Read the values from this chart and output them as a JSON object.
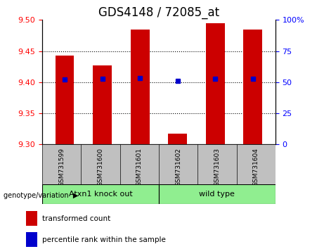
{
  "title": "GDS4148 / 72085_at",
  "samples": [
    "GSM731599",
    "GSM731600",
    "GSM731601",
    "GSM731602",
    "GSM731603",
    "GSM731604"
  ],
  "red_values": [
    9.443,
    9.427,
    9.484,
    9.317,
    9.495,
    9.484
  ],
  "blue_values": [
    9.404,
    9.405,
    9.407,
    9.402,
    9.406,
    9.405
  ],
  "ylim_left": [
    9.3,
    9.5
  ],
  "ylim_right": [
    0,
    100
  ],
  "yticks_left": [
    9.3,
    9.35,
    9.4,
    9.45,
    9.5
  ],
  "yticks_right": [
    0,
    25,
    50,
    75,
    100
  ],
  "ytick_labels_right": [
    "0",
    "25",
    "50",
    "75",
    "100%"
  ],
  "bar_bottom": 9.3,
  "group1_label": "Atxn1 knock out",
  "group2_label": "wild type",
  "group1_color": "#90EE90",
  "group2_color": "#90EE90",
  "tick_bg_color": "#C0C0C0",
  "red_color": "#CC0000",
  "blue_color": "#0000CC",
  "legend_red": "transformed count",
  "legend_blue": "percentile rank within the sample",
  "genotype_label": "genotype/variation",
  "title_fontsize": 12,
  "bar_width": 0.5
}
